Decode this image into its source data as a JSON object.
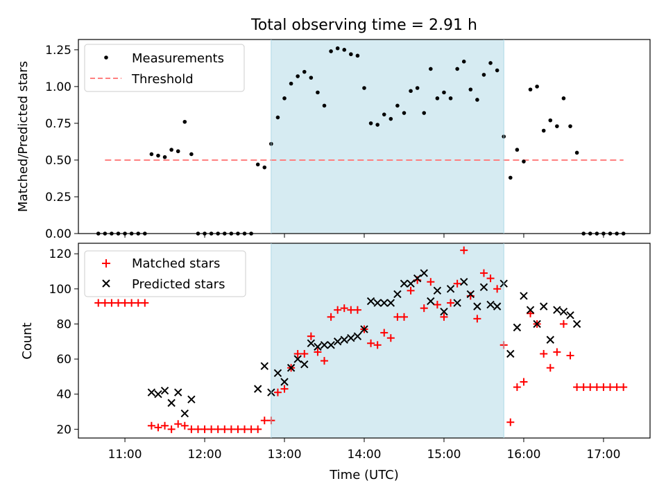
{
  "chart_data": [
    {
      "type": "scatter",
      "panel": "top",
      "title": "Total observing time = 2.91 h",
      "ylabel": "Matched/Predicted stars",
      "xlabel": "",
      "ylim": [
        0,
        1.32
      ],
      "xlim": [
        "10:25",
        "17:35"
      ],
      "yticks": [
        0.0,
        0.25,
        0.5,
        0.75,
        1.0,
        1.25
      ],
      "ytick_labels": [
        "0.00",
        "0.25",
        "0.50",
        "0.75",
        "1.00",
        "1.25"
      ],
      "xticks": [
        "11:00",
        "12:00",
        "13:00",
        "14:00",
        "15:00",
        "16:00",
        "17:00"
      ],
      "xtick_labels": [],
      "shaded_span": {
        "from": "12:50",
        "to": "15:45",
        "color": "#add8e6"
      },
      "grid": false,
      "legend_position": "top-left",
      "legend": [
        {
          "label": "Measurements",
          "marker": "dot",
          "color": "#000000"
        },
        {
          "label": "Threshold",
          "marker": "dashed-line",
          "color": "#ff7f7f"
        }
      ],
      "threshold": {
        "value": 0.5,
        "from": "10:45",
        "to": "17:15",
        "color": "#ff7f7f"
      },
      "series": [
        {
          "name": "Measurements",
          "color": "#000000",
          "marker": "dot",
          "x": [
            "10:40",
            "10:45",
            "10:50",
            "10:55",
            "11:00",
            "11:05",
            "11:10",
            "11:15",
            "11:20",
            "11:25",
            "11:30",
            "11:35",
            "11:40",
            "11:45",
            "11:50",
            "11:55",
            "12:00",
            "12:05",
            "12:10",
            "12:15",
            "12:20",
            "12:25",
            "12:30",
            "12:35",
            "12:40",
            "12:45",
            "12:50",
            "12:55",
            "13:00",
            "13:05",
            "13:10",
            "13:15",
            "13:20",
            "13:25",
            "13:30",
            "13:35",
            "13:40",
            "13:45",
            "13:50",
            "13:55",
            "14:00",
            "14:05",
            "14:10",
            "14:15",
            "14:20",
            "14:25",
            "14:30",
            "14:35",
            "14:40",
            "14:45",
            "14:50",
            "14:55",
            "15:00",
            "15:05",
            "15:10",
            "15:15",
            "15:20",
            "15:25",
            "15:30",
            "15:35",
            "15:40",
            "15:45",
            "15:50",
            "15:55",
            "16:00",
            "16:05",
            "16:10",
            "16:15",
            "16:20",
            "16:25",
            "16:30",
            "16:35",
            "16:40",
            "16:45",
            "16:50",
            "16:55",
            "17:00",
            "17:05",
            "17:10",
            "17:15"
          ],
          "y": [
            0,
            0,
            0,
            0,
            0,
            0,
            0,
            0,
            0.54,
            0.53,
            0.52,
            0.57,
            0.56,
            0.76,
            0.54,
            0,
            0,
            0,
            0,
            0,
            0,
            0,
            0,
            0,
            0.47,
            0.45,
            0.61,
            0.79,
            0.92,
            1.02,
            1.07,
            1.1,
            1.06,
            0.96,
            0.87,
            1.24,
            1.26,
            1.25,
            1.22,
            1.21,
            0.99,
            0.75,
            0.74,
            0.81,
            0.78,
            0.87,
            0.82,
            0.97,
            0.99,
            0.82,
            1.12,
            0.92,
            0.96,
            0.92,
            1.12,
            1.17,
            0.98,
            0.91,
            1.08,
            1.16,
            1.11,
            0.66,
            0.38,
            0.57,
            0.49,
            0.98,
            1.0,
            0.7,
            0.77,
            0.73,
            0.92,
            0.73,
            0.55,
            0,
            0,
            0,
            0,
            0,
            0,
            0
          ]
        }
      ]
    },
    {
      "type": "scatter",
      "panel": "bottom",
      "title": "",
      "ylabel": "Count",
      "xlabel": "Time (UTC)",
      "ylim": [
        15,
        126
      ],
      "xlim": [
        "10:25",
        "17:35"
      ],
      "yticks": [
        20,
        40,
        60,
        80,
        100,
        120
      ],
      "ytick_labels": [
        "20",
        "40",
        "60",
        "80",
        "100",
        "120"
      ],
      "xticks": [
        "11:00",
        "12:00",
        "13:00",
        "14:00",
        "15:00",
        "16:00",
        "17:00"
      ],
      "xtick_labels": [
        "11:00",
        "12:00",
        "13:00",
        "14:00",
        "15:00",
        "16:00",
        "17:00"
      ],
      "shaded_span": {
        "from": "12:50",
        "to": "15:45",
        "color": "#add8e6"
      },
      "grid": false,
      "legend_position": "top-left",
      "legend": [
        {
          "label": "Matched stars",
          "marker": "plus",
          "color": "#ff0000"
        },
        {
          "label": "Predicted stars",
          "marker": "x",
          "color": "#000000"
        }
      ],
      "series": [
        {
          "name": "Matched stars",
          "color": "#ff0000",
          "marker": "plus",
          "x": [
            "10:40",
            "10:45",
            "10:50",
            "10:55",
            "11:00",
            "11:05",
            "11:10",
            "11:15",
            "11:20",
            "11:25",
            "11:30",
            "11:35",
            "11:40",
            "11:45",
            "11:50",
            "11:55",
            "12:00",
            "12:05",
            "12:10",
            "12:15",
            "12:20",
            "12:25",
            "12:30",
            "12:35",
            "12:40",
            "12:45",
            "12:50",
            "12:55",
            "13:00",
            "13:05",
            "13:10",
            "13:15",
            "13:20",
            "13:25",
            "13:30",
            "13:35",
            "13:40",
            "13:45",
            "13:50",
            "13:55",
            "14:00",
            "14:05",
            "14:10",
            "14:15",
            "14:20",
            "14:25",
            "14:30",
            "14:35",
            "14:40",
            "14:45",
            "14:50",
            "14:55",
            "15:00",
            "15:05",
            "15:10",
            "15:15",
            "15:20",
            "15:25",
            "15:30",
            "15:35",
            "15:40",
            "15:45",
            "15:50",
            "15:55",
            "16:00",
            "16:05",
            "16:10",
            "16:15",
            "16:20",
            "16:25",
            "16:30",
            "16:35",
            "16:40",
            "16:45",
            "16:50",
            "16:55",
            "17:00",
            "17:05",
            "17:10",
            "17:15"
          ],
          "y": [
            92,
            92,
            92,
            92,
            92,
            92,
            92,
            92,
            22,
            21,
            22,
            20,
            23,
            22,
            20,
            20,
            20,
            20,
            20,
            20,
            20,
            20,
            20,
            20,
            20,
            25,
            25,
            41,
            43,
            55,
            63,
            63,
            73,
            64,
            59,
            84,
            88,
            89,
            88,
            88,
            77,
            69,
            68,
            75,
            72,
            84,
            84,
            99,
            105,
            89,
            104,
            91,
            84,
            92,
            103,
            122,
            96,
            83,
            109,
            106,
            100,
            68,
            24,
            44,
            47,
            86,
            80,
            63,
            55,
            64,
            80,
            62,
            44,
            44,
            44,
            44,
            44,
            44,
            44,
            44
          ]
        },
        {
          "name": "Predicted stars",
          "color": "#000000",
          "marker": "x",
          "x": [
            "11:20",
            "11:25",
            "11:30",
            "11:35",
            "11:40",
            "11:45",
            "11:50",
            "12:40",
            "12:45",
            "12:50",
            "12:55",
            "13:00",
            "13:05",
            "13:10",
            "13:15",
            "13:20",
            "13:25",
            "13:30",
            "13:35",
            "13:40",
            "13:45",
            "13:50",
            "13:55",
            "14:00",
            "14:05",
            "14:10",
            "14:15",
            "14:20",
            "14:25",
            "14:30",
            "14:35",
            "14:40",
            "14:45",
            "14:50",
            "14:55",
            "15:00",
            "15:05",
            "15:10",
            "15:15",
            "15:20",
            "15:25",
            "15:30",
            "15:35",
            "15:40",
            "15:45",
            "15:50",
            "15:55",
            "16:00",
            "16:05",
            "16:10",
            "16:15",
            "16:20",
            "16:25",
            "16:30",
            "16:35",
            "16:40"
          ],
          "y": [
            41,
            40,
            42,
            35,
            41,
            29,
            37,
            43,
            56,
            41,
            52,
            47,
            55,
            60,
            57,
            69,
            67,
            68,
            68,
            70,
            71,
            72,
            73,
            77,
            93,
            92,
            92,
            92,
            97,
            103,
            103,
            106,
            109,
            93,
            99,
            87,
            100,
            92,
            104,
            97,
            90,
            101,
            91,
            90,
            103,
            63,
            78,
            96,
            88,
            80,
            90,
            71,
            88,
            87,
            85,
            80
          ]
        }
      ]
    }
  ]
}
